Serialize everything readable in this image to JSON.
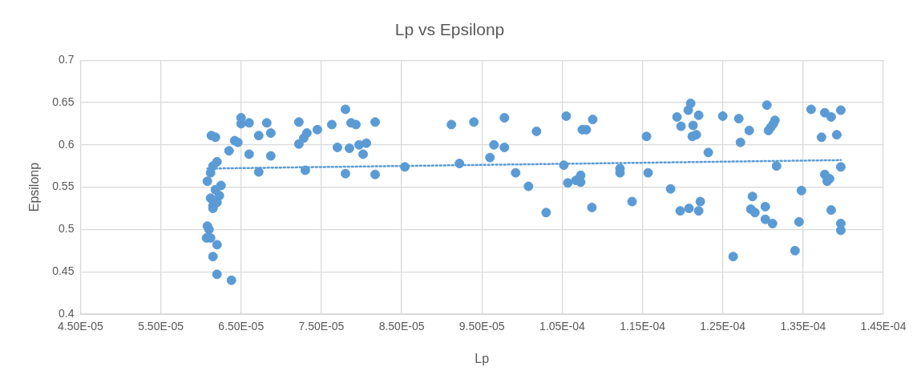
{
  "chart_data": {
    "type": "scatter",
    "title": "Lp vs Epsilonp",
    "xlabel": "Lp",
    "ylabel": "Epsilonp",
    "xlim": [
      4.5e-05,
      0.000145
    ],
    "xticks": [
      {
        "value": 4.5e-05,
        "label": "4.50E-05"
      },
      {
        "value": 5.5e-05,
        "label": "5.50E-05"
      },
      {
        "value": 6.5e-05,
        "label": "6.50E-05"
      },
      {
        "value": 7.5e-05,
        "label": "7.50E-05"
      },
      {
        "value": 8.5e-05,
        "label": "8.50E-05"
      },
      {
        "value": 9.5e-05,
        "label": "9.50E-05"
      },
      {
        "value": 0.000105,
        "label": "1.05E-04"
      },
      {
        "value": 0.000115,
        "label": "1.15E-04"
      },
      {
        "value": 0.000125,
        "label": "1.25E-04"
      },
      {
        "value": 0.000135,
        "label": "1.35E-04"
      },
      {
        "value": 0.000145,
        "label": "1.45E-04"
      }
    ],
    "ylim": [
      0.4,
      0.7
    ],
    "yticks": [
      0.4,
      0.45,
      0.5,
      0.55,
      0.6,
      0.65,
      0.7
    ],
    "grid": true,
    "legend": false,
    "marker": "circle",
    "series": [
      {
        "type": "scatter",
        "color": "#5b9bd5",
        "x": [
          6.13e-05,
          6.18e-05,
          6.2e-05,
          6.15e-05,
          6.12e-05,
          6.08e-05,
          6.25e-05,
          6.18e-05,
          6.23e-05,
          6.12e-05,
          6.2e-05,
          6.15e-05,
          6.15e-05,
          6.08e-05,
          6.1e-05,
          6.07e-05,
          6.12e-05,
          6.2e-05,
          6.15e-05,
          6.2e-05,
          6.38e-05,
          6.35e-05,
          6.42e-05,
          6.46e-05,
          6.5e-05,
          6.5e-05,
          6.6e-05,
          6.6e-05,
          6.72e-05,
          6.72e-05,
          6.82e-05,
          6.87e-05,
          6.87e-05,
          7.22e-05,
          7.22e-05,
          7.28e-05,
          7.3e-05,
          7.32e-05,
          7.45e-05,
          7.63e-05,
          7.7e-05,
          7.8e-05,
          7.8e-05,
          7.85e-05,
          7.87e-05,
          7.93e-05,
          7.97e-05,
          8.02e-05,
          8.06e-05,
          8.17e-05,
          8.17e-05,
          8.54e-05,
          9.12e-05,
          9.22e-05,
          9.4e-05,
          9.6e-05,
          9.65e-05,
          9.78e-05,
          9.78e-05,
          9.92e-05,
          0.0001008,
          0.0001018,
          0.000103,
          0.0001052,
          0.0001055,
          0.0001057,
          0.0001067,
          0.0001073,
          0.0001073,
          0.0001075,
          0.000108,
          0.0001087,
          0.0001088,
          0.0001122,
          0.0001122,
          0.0001137,
          0.0001155,
          0.0001157,
          0.0001185,
          0.0001193,
          0.0001197,
          0.0001198,
          0.0001207,
          0.0001208,
          0.000121,
          0.0001212,
          0.0001213,
          0.0001217,
          0.000122,
          0.000122,
          0.0001222,
          0.0001232,
          0.000125,
          0.0001263,
          0.000127,
          0.0001272,
          0.0001283,
          0.0001285,
          0.0001287,
          0.000129,
          0.0001303,
          0.0001303,
          0.0001305,
          0.0001307,
          0.000131,
          0.0001312,
          0.0001313,
          0.0001315,
          0.0001317,
          0.000134,
          0.0001345,
          0.0001348,
          0.000136,
          0.0001373,
          0.0001377,
          0.0001377,
          0.000138,
          0.0001383,
          0.0001385,
          0.0001385,
          0.0001392,
          0.0001397,
          0.0001397,
          0.0001397,
          0.0001397
        ],
        "values": [
          0.611,
          0.609,
          0.58,
          0.575,
          0.567,
          0.557,
          0.552,
          0.547,
          0.54,
          0.537,
          0.532,
          0.528,
          0.525,
          0.504,
          0.5,
          0.49,
          0.49,
          0.482,
          0.468,
          0.447,
          0.44,
          0.593,
          0.605,
          0.603,
          0.632,
          0.625,
          0.626,
          0.589,
          0.568,
          0.611,
          0.626,
          0.614,
          0.587,
          0.627,
          0.601,
          0.608,
          0.57,
          0.614,
          0.618,
          0.624,
          0.597,
          0.642,
          0.566,
          0.596,
          0.626,
          0.624,
          0.6,
          0.589,
          0.602,
          0.627,
          0.565,
          0.574,
          0.624,
          0.578,
          0.627,
          0.585,
          0.6,
          0.632,
          0.597,
          0.567,
          0.551,
          0.616,
          0.52,
          0.576,
          0.634,
          0.555,
          0.558,
          0.564,
          0.556,
          0.618,
          0.618,
          0.526,
          0.63,
          0.567,
          0.572,
          0.533,
          0.61,
          0.567,
          0.548,
          0.633,
          0.522,
          0.622,
          0.641,
          0.525,
          0.649,
          0.61,
          0.623,
          0.612,
          0.635,
          0.522,
          0.533,
          0.591,
          0.634,
          0.468,
          0.631,
          0.603,
          0.617,
          0.524,
          0.539,
          0.52,
          0.527,
          0.512,
          0.647,
          0.617,
          0.621,
          0.507,
          0.625,
          0.629,
          0.575,
          0.475,
          0.509,
          0.546,
          0.642,
          0.609,
          0.638,
          0.565,
          0.557,
          0.56,
          0.523,
          0.633,
          0.612,
          0.641,
          0.574,
          0.507,
          0.499
        ]
      },
      {
        "type": "line",
        "color": "#5b9bd5",
        "line_style": "dotted",
        "marker": "none",
        "x": [
          6.08e-05,
          0.0001397
        ],
        "values": [
          0.572,
          0.582
        ]
      }
    ]
  }
}
